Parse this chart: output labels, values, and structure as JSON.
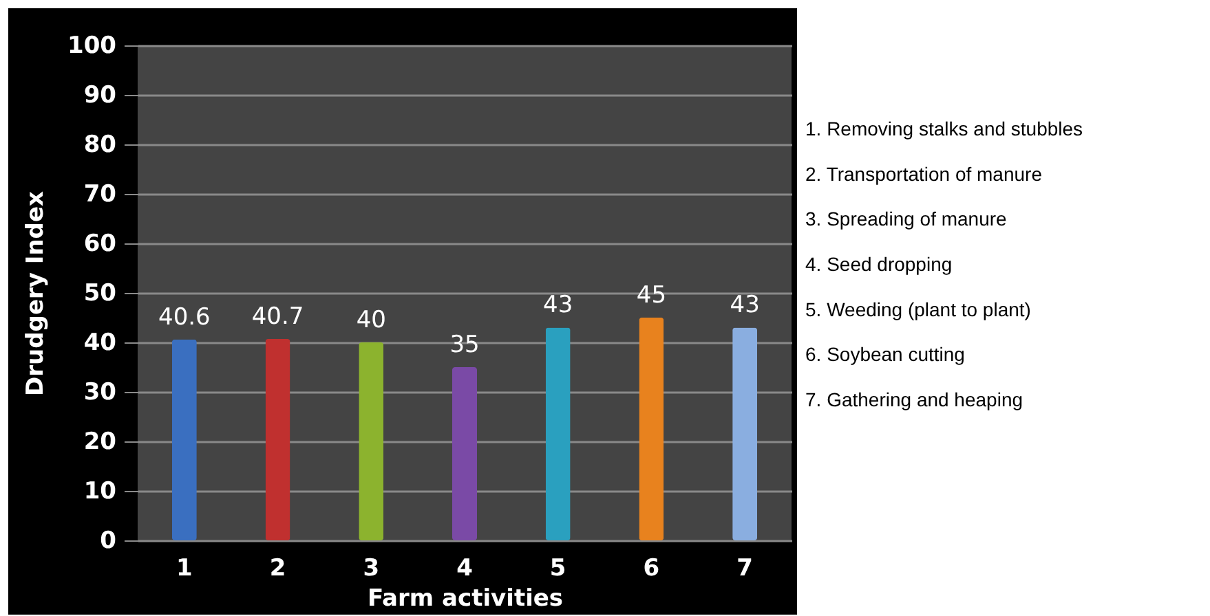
{
  "chart_data": {
    "type": "bar",
    "xlabel": "Farm activities",
    "ylabel": "Drudgery Index",
    "categories": [
      "1",
      "2",
      "3",
      "4",
      "5",
      "6",
      "7"
    ],
    "values": [
      40.6,
      40.7,
      40,
      35,
      43,
      45,
      43
    ],
    "colors": [
      "#3a6fc0",
      "#c0302f",
      "#8cb32e",
      "#7a4aa6",
      "#2aa0bf",
      "#e8821e",
      "#8aaee0"
    ],
    "ylim": [
      0,
      100
    ],
    "yticks": [
      0,
      10,
      20,
      30,
      40,
      50,
      60,
      70,
      80,
      90,
      100
    ],
    "grid": "y",
    "data_labels": true,
    "annotations": [
      "1. Removing stalks and stubbles",
      "2. Transportation of manure",
      "3. Spreading of manure",
      "4. Seed dropping",
      "5. Weeding (plant to plant)",
      "6. Soybean cutting",
      "7. Gathering and heaping"
    ]
  }
}
